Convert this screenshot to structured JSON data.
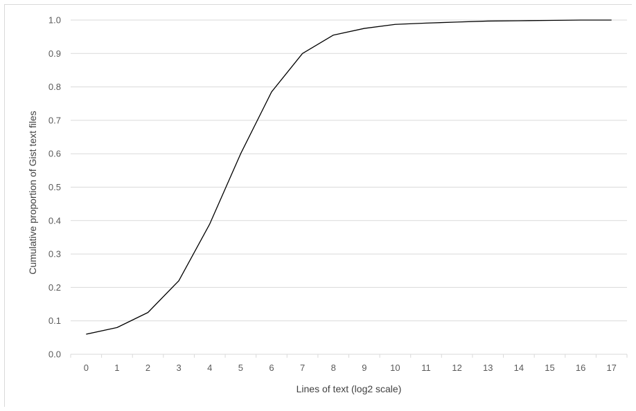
{
  "chart_data": {
    "type": "line",
    "title": "",
    "xlabel": "Lines of text (log2 scale)",
    "ylabel": "Cumulative proportion of Gist text files",
    "x_scale": "log2",
    "categories": [
      "0",
      "1",
      "2",
      "3",
      "4",
      "5",
      "6",
      "7",
      "8",
      "9",
      "10",
      "11",
      "12",
      "13",
      "14",
      "15",
      "16",
      "17"
    ],
    "x": [
      0,
      1,
      2,
      3,
      4,
      5,
      6,
      7,
      8,
      9,
      10,
      11,
      12,
      13,
      14,
      15,
      16,
      17
    ],
    "series": [
      {
        "values": [
          0.06,
          0.08,
          0.125,
          0.22,
          0.39,
          0.6,
          0.785,
          0.9,
          0.955,
          0.975,
          0.987,
          0.991,
          0.994,
          0.997,
          0.998,
          0.999,
          1.0,
          1.0
        ],
        "color": "#000000"
      }
    ],
    "ylim": [
      0.0,
      1.0
    ],
    "y_ticks": [
      "0.0",
      "0.1",
      "0.2",
      "0.3",
      "0.4",
      "0.5",
      "0.6",
      "0.7",
      "0.8",
      "0.9",
      "1.0"
    ],
    "grid": "horizontal",
    "legend": "none",
    "colors": {
      "gridline": "#d9d9d9",
      "axis": "#d9d9d9",
      "line": "#000000",
      "tick_text": "#595959"
    }
  }
}
